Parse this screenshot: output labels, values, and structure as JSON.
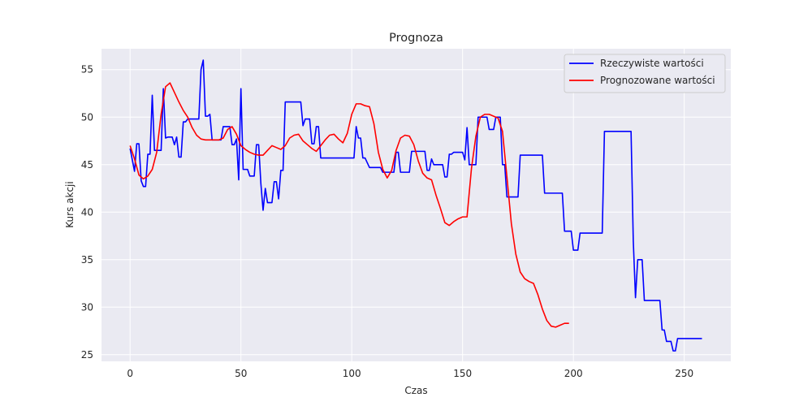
{
  "chart_data": {
    "type": "line",
    "title": "Prognoza",
    "xlabel": "Czas",
    "ylabel": "Kurs akcji",
    "xlim": [
      -12.9,
      271
    ],
    "ylim": [
      24.3,
      57.2
    ],
    "x_ticks": [
      0,
      50,
      100,
      150,
      200,
      250
    ],
    "y_ticks": [
      25,
      30,
      35,
      40,
      45,
      50,
      55
    ],
    "grid": true,
    "legend_position": "top-right",
    "series": [
      {
        "name": "Rzeczywiste wartości",
        "color": "#0000ff",
        "points": [
          [
            0,
            46.7
          ],
          [
            1,
            45.5
          ],
          [
            2,
            44.3
          ],
          [
            3,
            47.2
          ],
          [
            4,
            47.2
          ],
          [
            5,
            43.3
          ],
          [
            6,
            42.7
          ],
          [
            7,
            42.7
          ],
          [
            8,
            46.1
          ],
          [
            9,
            46.1
          ],
          [
            10,
            52.3
          ],
          [
            11,
            46.5
          ],
          [
            12,
            46.5
          ],
          [
            13,
            46.5
          ],
          [
            14,
            46.5
          ],
          [
            15,
            53
          ],
          [
            16,
            47.8
          ],
          [
            17,
            47.9
          ],
          [
            18,
            47.9
          ],
          [
            19,
            47.9
          ],
          [
            20,
            47.1
          ],
          [
            21,
            47.9
          ],
          [
            22,
            45.8
          ],
          [
            23,
            45.8
          ],
          [
            24,
            49.5
          ],
          [
            25,
            49.5
          ],
          [
            26,
            49.8
          ],
          [
            27,
            49.8
          ],
          [
            28,
            49.8
          ],
          [
            29,
            49.8
          ],
          [
            30,
            49.8
          ],
          [
            31,
            49.8
          ],
          [
            32,
            55
          ],
          [
            33,
            56
          ],
          [
            34,
            50.1
          ],
          [
            35,
            50.1
          ],
          [
            36,
            50.3
          ],
          [
            37,
            47.6
          ],
          [
            38,
            47.6
          ],
          [
            39,
            47.6
          ],
          [
            40,
            47.6
          ],
          [
            41,
            47.6
          ],
          [
            42,
            49
          ],
          [
            43,
            49
          ],
          [
            44,
            49
          ],
          [
            45,
            49
          ],
          [
            46,
            47.1
          ],
          [
            47,
            47.1
          ],
          [
            48,
            47.7
          ],
          [
            49,
            43.4
          ],
          [
            50,
            53
          ],
          [
            51,
            44.5
          ],
          [
            52,
            44.5
          ],
          [
            53,
            44.5
          ],
          [
            54,
            43.8
          ],
          [
            55,
            43.8
          ],
          [
            56,
            43.8
          ],
          [
            57,
            47.1
          ],
          [
            58,
            47.1
          ],
          [
            59,
            43
          ],
          [
            60,
            40.2
          ],
          [
            61,
            42.5
          ],
          [
            62,
            41
          ],
          [
            63,
            41
          ],
          [
            64,
            41
          ],
          [
            65,
            43.2
          ],
          [
            66,
            43.2
          ],
          [
            67,
            41.4
          ],
          [
            68,
            44.4
          ],
          [
            69,
            44.4
          ],
          [
            70,
            51.6
          ],
          [
            71,
            51.6
          ],
          [
            72,
            51.6
          ],
          [
            73,
            51.6
          ],
          [
            74,
            51.6
          ],
          [
            75,
            51.6
          ],
          [
            76,
            51.6
          ],
          [
            77,
            51.6
          ],
          [
            78,
            49.1
          ],
          [
            79,
            49.8
          ],
          [
            80,
            49.8
          ],
          [
            81,
            49.8
          ],
          [
            82,
            47.2
          ],
          [
            83,
            47.2
          ],
          [
            84,
            49
          ],
          [
            85,
            49
          ],
          [
            86,
            45.7
          ],
          [
            87,
            45.7
          ],
          [
            88,
            45.7
          ],
          [
            90,
            45.7
          ],
          [
            92,
            45.7
          ],
          [
            95,
            45.7
          ],
          [
            98,
            45.7
          ],
          [
            100,
            45.7
          ],
          [
            101,
            45.7
          ],
          [
            102,
            49
          ],
          [
            103,
            47.8
          ],
          [
            104,
            47.8
          ],
          [
            105,
            45.7
          ],
          [
            106,
            45.7
          ],
          [
            107,
            45.2
          ],
          [
            108,
            44.7
          ],
          [
            110,
            44.7
          ],
          [
            112,
            44.7
          ],
          [
            113,
            44.7
          ],
          [
            114,
            44.2
          ],
          [
            115,
            44.2
          ],
          [
            116,
            44.2
          ],
          [
            117,
            44.2
          ],
          [
            118,
            44.2
          ],
          [
            119,
            44.2
          ],
          [
            120,
            46.3
          ],
          [
            121,
            46.3
          ],
          [
            122,
            44.2
          ],
          [
            123,
            44.2
          ],
          [
            124,
            44.2
          ],
          [
            125,
            44.2
          ],
          [
            126,
            44.2
          ],
          [
            127,
            46.4
          ],
          [
            128,
            46.4
          ],
          [
            130,
            46.4
          ],
          [
            132,
            46.4
          ],
          [
            133,
            46.4
          ],
          [
            134,
            44.4
          ],
          [
            135,
            44.4
          ],
          [
            136,
            45.6
          ],
          [
            137,
            45
          ],
          [
            138,
            45
          ],
          [
            139,
            45
          ],
          [
            140,
            45
          ],
          [
            141,
            45
          ],
          [
            142,
            43.7
          ],
          [
            143,
            43.7
          ],
          [
            144,
            46.1
          ],
          [
            145,
            46.1
          ],
          [
            146,
            46.3
          ],
          [
            147,
            46.3
          ],
          [
            148,
            46.3
          ],
          [
            149,
            46.3
          ],
          [
            150,
            46.3
          ],
          [
            151,
            45.5
          ],
          [
            152,
            48.9
          ],
          [
            153,
            45
          ],
          [
            154,
            45
          ],
          [
            155,
            45
          ],
          [
            156,
            45
          ],
          [
            157,
            50
          ],
          [
            158,
            50
          ],
          [
            159,
            50
          ],
          [
            160,
            50
          ],
          [
            161,
            50
          ],
          [
            162,
            48.7
          ],
          [
            163,
            48.7
          ],
          [
            164,
            48.7
          ],
          [
            165,
            50
          ],
          [
            166,
            50
          ],
          [
            167,
            50
          ],
          [
            168,
            45
          ],
          [
            169,
            45
          ],
          [
            170,
            41.6
          ],
          [
            171,
            41.6
          ],
          [
            172,
            41.6
          ],
          [
            173,
            41.6
          ],
          [
            174,
            41.6
          ],
          [
            175,
            41.6
          ],
          [
            176,
            46
          ],
          [
            178,
            46
          ],
          [
            180,
            46
          ],
          [
            182,
            46
          ],
          [
            184,
            46
          ],
          [
            186,
            46
          ],
          [
            187,
            42
          ],
          [
            190,
            42
          ],
          [
            192,
            42
          ],
          [
            194,
            42
          ],
          [
            195,
            42
          ],
          [
            196,
            38
          ],
          [
            198,
            38
          ],
          [
            199,
            38
          ],
          [
            200,
            36
          ],
          [
            202,
            36
          ],
          [
            203,
            37.8
          ],
          [
            205,
            37.8
          ],
          [
            207,
            37.8
          ],
          [
            210,
            37.8
          ],
          [
            213,
            37.8
          ],
          [
            214,
            48.5
          ],
          [
            216,
            48.5
          ],
          [
            220,
            48.5
          ],
          [
            222,
            48.5
          ],
          [
            224,
            48.5
          ],
          [
            226,
            48.5
          ],
          [
            227,
            37
          ],
          [
            228,
            31
          ],
          [
            229,
            35
          ],
          [
            230,
            35
          ],
          [
            231,
            35
          ],
          [
            232,
            30.7
          ],
          [
            234,
            30.7
          ],
          [
            236,
            30.7
          ],
          [
            238,
            30.7
          ],
          [
            239,
            30.7
          ],
          [
            240,
            27.6
          ],
          [
            241,
            27.6
          ],
          [
            242,
            26.4
          ],
          [
            243,
            26.4
          ],
          [
            244,
            26.4
          ],
          [
            245,
            25.4
          ],
          [
            246,
            25.4
          ],
          [
            247,
            26.7
          ],
          [
            250,
            26.7
          ],
          [
            254,
            26.7
          ],
          [
            258,
            26.7
          ]
        ]
      },
      {
        "name": "Prognozowane wartości",
        "color": "#ff0000",
        "points": [
          [
            0,
            47
          ],
          [
            2,
            45.6
          ],
          [
            4,
            43.9
          ],
          [
            6,
            43.5
          ],
          [
            8,
            43.8
          ],
          [
            10,
            44.5
          ],
          [
            12,
            46.3
          ],
          [
            14,
            50.3
          ],
          [
            16,
            53.2
          ],
          [
            18,
            53.6
          ],
          [
            20,
            52.6
          ],
          [
            22,
            51.6
          ],
          [
            24,
            50.7
          ],
          [
            26,
            50
          ],
          [
            28,
            48.9
          ],
          [
            30,
            48.1
          ],
          [
            32,
            47.7
          ],
          [
            34,
            47.6
          ],
          [
            36,
            47.6
          ],
          [
            38,
            47.6
          ],
          [
            40,
            47.6
          ],
          [
            42,
            47.8
          ],
          [
            44,
            48.7
          ],
          [
            46,
            49
          ],
          [
            48,
            48.2
          ],
          [
            50,
            47
          ],
          [
            52,
            46.6
          ],
          [
            54,
            46.3
          ],
          [
            56,
            46.1
          ],
          [
            58,
            46
          ],
          [
            60,
            46
          ],
          [
            62,
            46.5
          ],
          [
            64,
            47
          ],
          [
            66,
            46.8
          ],
          [
            68,
            46.6
          ],
          [
            70,
            47
          ],
          [
            72,
            47.8
          ],
          [
            74,
            48.1
          ],
          [
            76,
            48.2
          ],
          [
            78,
            47.5
          ],
          [
            80,
            47.1
          ],
          [
            82,
            46.7
          ],
          [
            84,
            46.4
          ],
          [
            86,
            47
          ],
          [
            88,
            47.6
          ],
          [
            90,
            48.1
          ],
          [
            92,
            48.2
          ],
          [
            94,
            47.7
          ],
          [
            96,
            47.3
          ],
          [
            98,
            48.3
          ],
          [
            100,
            50.3
          ],
          [
            102,
            51.4
          ],
          [
            104,
            51.4
          ],
          [
            106,
            51.2
          ],
          [
            108,
            51.1
          ],
          [
            110,
            49.3
          ],
          [
            112,
            46.3
          ],
          [
            114,
            44.5
          ],
          [
            116,
            43.6
          ],
          [
            118,
            44.4
          ],
          [
            120,
            46.5
          ],
          [
            122,
            47.8
          ],
          [
            124,
            48.1
          ],
          [
            126,
            48
          ],
          [
            128,
            47.1
          ],
          [
            130,
            45.4
          ],
          [
            132,
            44.1
          ],
          [
            134,
            43.6
          ],
          [
            136,
            43.4
          ],
          [
            138,
            41.8
          ],
          [
            140,
            40.4
          ],
          [
            142,
            38.9
          ],
          [
            144,
            38.6
          ],
          [
            146,
            39
          ],
          [
            148,
            39.3
          ],
          [
            150,
            39.5
          ],
          [
            152,
            39.5
          ],
          [
            154,
            44.6
          ],
          [
            156,
            48
          ],
          [
            158,
            50
          ],
          [
            160,
            50.3
          ],
          [
            162,
            50.3
          ],
          [
            164,
            50.1
          ],
          [
            166,
            49.9
          ],
          [
            168,
            48.5
          ],
          [
            170,
            43.7
          ],
          [
            172,
            38.8
          ],
          [
            174,
            35.6
          ],
          [
            176,
            33.7
          ],
          [
            178,
            33
          ],
          [
            180,
            32.7
          ],
          [
            182,
            32.5
          ],
          [
            184,
            31.3
          ],
          [
            186,
            29.8
          ],
          [
            188,
            28.6
          ],
          [
            190,
            28
          ],
          [
            192,
            27.9
          ],
          [
            194,
            28.1
          ],
          [
            196,
            28.3
          ],
          [
            198,
            28.3
          ]
        ]
      }
    ]
  }
}
